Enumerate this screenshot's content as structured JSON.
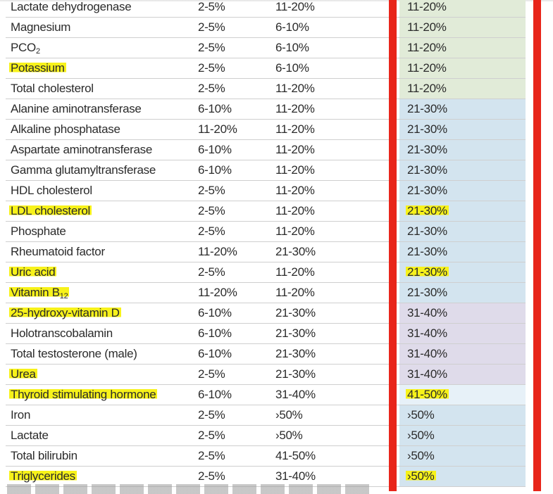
{
  "rows": [
    {
      "name": "Lactate dehydrogenase",
      "a": "2-5%",
      "b": "11-20%",
      "c": "11-20%",
      "zone": "green",
      "hl_name": false,
      "hl_c": false
    },
    {
      "name": "Magnesium",
      "a": "2-5%",
      "b": "6-10%",
      "c": "11-20%",
      "zone": "green",
      "hl_name": false,
      "hl_c": false
    },
    {
      "name": "PCO",
      "sub": "2",
      "a": "2-5%",
      "b": "6-10%",
      "c": "11-20%",
      "zone": "green",
      "hl_name": false,
      "hl_c": false
    },
    {
      "name": "Potassium",
      "a": "2-5%",
      "b": "6-10%",
      "c": "11-20%",
      "zone": "green",
      "hl_name": true,
      "hl_c": false
    },
    {
      "name": "Total cholesterol",
      "a": "2-5%",
      "b": "11-20%",
      "c": "11-20%",
      "zone": "green",
      "hl_name": false,
      "hl_c": false
    },
    {
      "name": "Alanine aminotransferase",
      "a": "6-10%",
      "b": "11-20%",
      "c": "21-30%",
      "zone": "blue",
      "hl_name": false,
      "hl_c": false
    },
    {
      "name": "Alkaline phosphatase",
      "a": "11-20%",
      "b": "11-20%",
      "c": "21-30%",
      "zone": "blue",
      "hl_name": false,
      "hl_c": false
    },
    {
      "name": "Aspartate aminotransferase",
      "a": "6-10%",
      "b": "11-20%",
      "c": "21-30%",
      "zone": "blue",
      "hl_name": false,
      "hl_c": false
    },
    {
      "name": "Gamma glutamyltransferase",
      "a": "6-10%",
      "b": "11-20%",
      "c": "21-30%",
      "zone": "blue",
      "hl_name": false,
      "hl_c": false
    },
    {
      "name": "HDL cholesterol",
      "a": "2-5%",
      "b": "11-20%",
      "c": "21-30%",
      "zone": "blue",
      "hl_name": false,
      "hl_c": false
    },
    {
      "name": "LDL cholesterol",
      "a": "2-5%",
      "b": "11-20%",
      "c": "21-30%",
      "zone": "blue",
      "hl_name": true,
      "hl_c": true
    },
    {
      "name": "Phosphate",
      "a": "2-5%",
      "b": "11-20%",
      "c": "21-30%",
      "zone": "blue",
      "hl_name": false,
      "hl_c": false
    },
    {
      "name": "Rheumatoid factor",
      "a": "11-20%",
      "b": "21-30%",
      "c": "21-30%",
      "zone": "blue",
      "hl_name": false,
      "hl_c": false
    },
    {
      "name": "Uric acid",
      "a": "2-5%",
      "b": "11-20%",
      "c": "21-30%",
      "zone": "blue",
      "hl_name": true,
      "hl_c": true
    },
    {
      "name": "Vitamin B",
      "sub": "12",
      "a": "11-20%",
      "b": "11-20%",
      "c": "21-30%",
      "zone": "blue",
      "hl_name": true,
      "hl_c": false
    },
    {
      "name": "25-hydroxy-vitamin D",
      "a": "6-10%",
      "b": "21-30%",
      "c": "31-40%",
      "zone": "purple",
      "hl_name": true,
      "hl_c": false
    },
    {
      "name": "Holotranscobalamin",
      "a": "6-10%",
      "b": "21-30%",
      "c": "31-40%",
      "zone": "purple",
      "hl_name": false,
      "hl_c": false
    },
    {
      "name": "Total testosterone (male)",
      "a": "6-10%",
      "b": "21-30%",
      "c": "31-40%",
      "zone": "purple",
      "hl_name": false,
      "hl_c": false
    },
    {
      "name": "Urea",
      "a": "2-5%",
      "b": "21-30%",
      "c": "31-40%",
      "zone": "purple",
      "hl_name": true,
      "hl_c": false
    },
    {
      "name": "Thyroid stimulating hormone",
      "a": "6-10%",
      "b": "31-40%",
      "c": "41-50%",
      "zone": "pale",
      "hl_name": true,
      "hl_c": true
    },
    {
      "name": "Iron",
      "a": "2-5%",
      "b": "›50%",
      "c": "›50%",
      "zone": "blue",
      "hl_name": false,
      "hl_c": false
    },
    {
      "name": "Lactate",
      "a": "2-5%",
      "b": "›50%",
      "c": "›50%",
      "zone": "blue",
      "hl_name": false,
      "hl_c": false
    },
    {
      "name": "Total bilirubin",
      "a": "2-5%",
      "b": "41-50%",
      "c": "›50%",
      "zone": "blue",
      "hl_name": false,
      "hl_c": false
    },
    {
      "name": "Triglycerides",
      "a": "2-5%",
      "b": "31-40%",
      "c": "›50%",
      "zone": "blue",
      "hl_name": true,
      "hl_c": true
    }
  ],
  "colors": {
    "green": "#e1ebd8",
    "blue": "#d3e4ef",
    "purple": "#dfdbea",
    "pale": "#e7f1f8",
    "highlight": "#f7f21a",
    "red_border": "#e8251a"
  }
}
